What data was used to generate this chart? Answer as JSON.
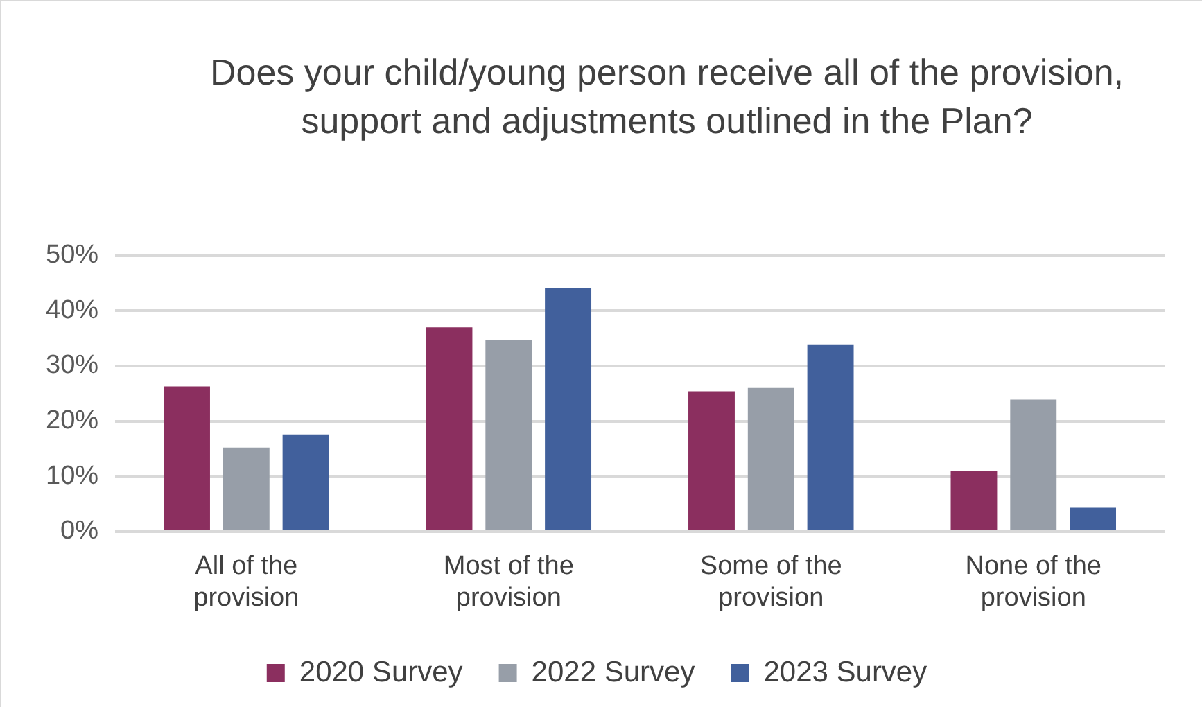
{
  "chart_data": {
    "type": "bar",
    "title": "Does your child/young person receive all of the provision, support and adjustments outlined in the Plan?",
    "categories": [
      "All of the provision",
      "Most of the provision",
      "Some of the provision",
      "None of the provision"
    ],
    "series": [
      {
        "name": "2020 Survey",
        "color": "#8b2f5f",
        "values": [
          26.3,
          37.0,
          25.4,
          11.0
        ]
      },
      {
        "name": "2022 Survey",
        "color": "#979ea8",
        "values": [
          15.2,
          34.7,
          26.0,
          23.9
        ]
      },
      {
        "name": "2023 Survey",
        "color": "#41609c",
        "values": [
          17.6,
          44.1,
          33.8,
          4.3
        ]
      }
    ],
    "ylim": [
      0,
      50
    ],
    "yticks": [
      {
        "value": 0,
        "label": "0%"
      },
      {
        "value": 10,
        "label": "10%"
      },
      {
        "value": 20,
        "label": "20%"
      },
      {
        "value": 30,
        "label": "30%"
      },
      {
        "value": 40,
        "label": "40%"
      },
      {
        "value": 50,
        "label": "50%"
      }
    ],
    "grid": "y",
    "legend": "bottom"
  }
}
